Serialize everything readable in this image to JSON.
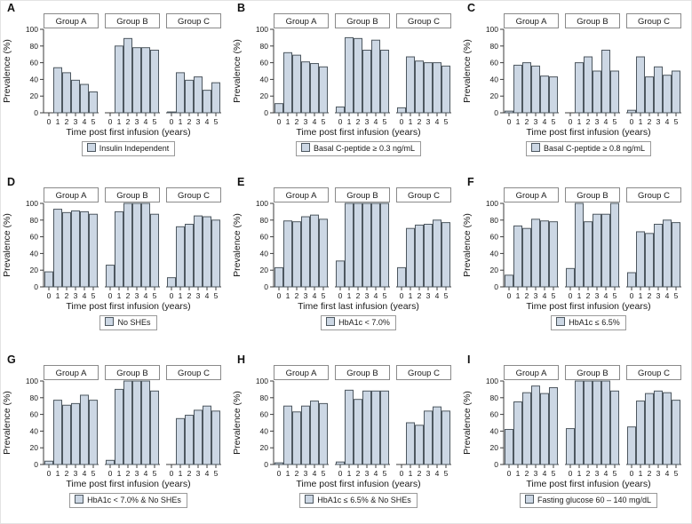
{
  "figure": {
    "ylabel": "Prevalence (%)",
    "groups": [
      "Group A",
      "Group B",
      "Group C"
    ],
    "x_ticks": [
      "0",
      "1",
      "2",
      "3",
      "4",
      "5"
    ],
    "y_ticks": [
      0,
      20,
      40,
      60,
      80,
      100
    ],
    "ylim": [
      0,
      100
    ],
    "colors": {
      "bar_fill": "#ccd7e4",
      "bar_stroke": "#4e5860",
      "axis": "#3c3c3c",
      "strip_border": "#8a8a8a",
      "strip_fill": "#ffffff",
      "legend_border": "#9a9a9a",
      "text": "#1a1a1a"
    }
  },
  "chart_data": [
    {
      "type": "bar",
      "panel_label": "A",
      "legend": "Insulin Independent",
      "xlabel": "Time post first infusion (years)",
      "ylabel": "Prevalence (%)",
      "categories": [
        0,
        1,
        2,
        3,
        4,
        5
      ],
      "ylim": [
        0,
        100
      ],
      "series": [
        {
          "name": "Group A",
          "values": [
            0,
            54,
            48,
            39,
            34,
            25
          ]
        },
        {
          "name": "Group B",
          "values": [
            0,
            80,
            89,
            78,
            78,
            75
          ]
        },
        {
          "name": "Group C",
          "values": [
            1,
            48,
            39,
            43,
            27,
            36
          ]
        }
      ]
    },
    {
      "type": "bar",
      "panel_label": "B",
      "legend": "Basal C-peptide ≥ 0.3 ng/mL",
      "xlabel": "Time post first infusion (years)",
      "ylabel": "Prevalence (%)",
      "categories": [
        0,
        1,
        2,
        3,
        4,
        5
      ],
      "ylim": [
        0,
        100
      ],
      "series": [
        {
          "name": "Group A",
          "values": [
            11,
            72,
            69,
            61,
            59,
            55
          ]
        },
        {
          "name": "Group B",
          "values": [
            7,
            90,
            89,
            75,
            87,
            75
          ]
        },
        {
          "name": "Group C",
          "values": [
            6,
            67,
            62,
            60,
            60,
            56
          ]
        }
      ]
    },
    {
      "type": "bar",
      "panel_label": "C",
      "legend": "Basal C-peptide ≥ 0.8 ng/mL",
      "xlabel": "Time post first infusion (years)",
      "ylabel": "Prevalence (%)",
      "categories": [
        0,
        1,
        2,
        3,
        4,
        5
      ],
      "ylim": [
        0,
        100
      ],
      "series": [
        {
          "name": "Group A",
          "values": [
            2,
            57,
            60,
            56,
            44,
            43
          ]
        },
        {
          "name": "Group B",
          "values": [
            0,
            60,
            67,
            50,
            75,
            50
          ]
        },
        {
          "name": "Group C",
          "values": [
            3,
            67,
            43,
            55,
            45,
            50
          ]
        }
      ]
    },
    {
      "type": "bar",
      "panel_label": "D",
      "legend": "No SHEs",
      "xlabel": "Time post first infusion (years)",
      "ylabel": "Prevalence (%)",
      "categories": [
        0,
        1,
        2,
        3,
        4,
        5
      ],
      "ylim": [
        0,
        100
      ],
      "series": [
        {
          "name": "Group A",
          "values": [
            18,
            93,
            89,
            91,
            90,
            87
          ]
        },
        {
          "name": "Group B",
          "values": [
            26,
            90,
            100,
            100,
            100,
            87
          ]
        },
        {
          "name": "Group C",
          "values": [
            11,
            72,
            75,
            85,
            84,
            80
          ]
        }
      ]
    },
    {
      "type": "bar",
      "panel_label": "E",
      "legend": "HbA1c < 7.0%",
      "xlabel": "Time first last infusion (years)",
      "ylabel": "Prevalence (%)",
      "categories": [
        0,
        1,
        2,
        3,
        4,
        5
      ],
      "ylim": [
        0,
        100
      ],
      "series": [
        {
          "name": "Group A",
          "values": [
            23,
            79,
            78,
            84,
            86,
            81
          ]
        },
        {
          "name": "Group B",
          "values": [
            31,
            100,
            100,
            100,
            100,
            100
          ]
        },
        {
          "name": "Group C",
          "values": [
            23,
            70,
            74,
            75,
            80,
            77
          ]
        }
      ]
    },
    {
      "type": "bar",
      "panel_label": "F",
      "legend": "HbA1c ≤ 6.5%",
      "xlabel": "Time post first infusion (years)",
      "ylabel": "Prevalence (%)",
      "categories": [
        0,
        1,
        2,
        3,
        4,
        5
      ],
      "ylim": [
        0,
        100
      ],
      "series": [
        {
          "name": "Group A",
          "values": [
            14,
            73,
            70,
            81,
            79,
            78
          ]
        },
        {
          "name": "Group B",
          "values": [
            22,
            100,
            78,
            87,
            87,
            100
          ]
        },
        {
          "name": "Group C",
          "values": [
            17,
            66,
            64,
            75,
            80,
            77
          ]
        }
      ]
    },
    {
      "type": "bar",
      "panel_label": "G",
      "legend": "HbA1c < 7.0% & No SHEs",
      "xlabel": "Time post first infusion (years)",
      "ylabel": "Prevalence (%)",
      "categories": [
        0,
        1,
        2,
        3,
        4,
        5
      ],
      "ylim": [
        0,
        100
      ],
      "series": [
        {
          "name": "Group A",
          "values": [
            4,
            77,
            71,
            73,
            83,
            77
          ]
        },
        {
          "name": "Group B",
          "values": [
            5,
            90,
            100,
            100,
            100,
            88
          ]
        },
        {
          "name": "Group C",
          "values": [
            0,
            55,
            59,
            65,
            70,
            64
          ]
        }
      ]
    },
    {
      "type": "bar",
      "panel_label": "H",
      "legend": "HbA1c ≤ 6.5% & No SHEs",
      "xlabel": "Time post first infusion (years)",
      "ylabel": "Prevalence (%)",
      "categories": [
        0,
        1,
        2,
        3,
        4,
        5
      ],
      "ylim": [
        0,
        100
      ],
      "series": [
        {
          "name": "Group A",
          "values": [
            2,
            70,
            63,
            70,
            76,
            73
          ]
        },
        {
          "name": "Group B",
          "values": [
            3,
            89,
            78,
            88,
            88,
            88
          ]
        },
        {
          "name": "Group C",
          "values": [
            0,
            50,
            47,
            64,
            69,
            64
          ]
        }
      ]
    },
    {
      "type": "bar",
      "panel_label": "I",
      "legend": "Fasting glucose 60 – 140 mg/dL",
      "xlabel": "Time post first infusion (years)",
      "ylabel": "Prevalence (%)",
      "categories": [
        0,
        1,
        2,
        3,
        4,
        5
      ],
      "ylim": [
        0,
        100
      ],
      "series": [
        {
          "name": "Group A",
          "values": [
            42,
            75,
            86,
            94,
            85,
            92
          ]
        },
        {
          "name": "Group B",
          "values": [
            43,
            100,
            100,
            100,
            100,
            88
          ]
        },
        {
          "name": "Group C",
          "values": [
            45,
            76,
            85,
            88,
            86,
            77
          ]
        }
      ]
    }
  ]
}
